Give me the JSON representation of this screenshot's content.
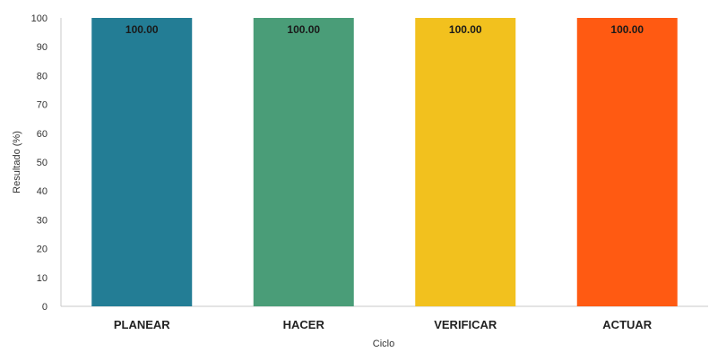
{
  "chart_data": {
    "type": "bar",
    "categories": [
      "PLANEAR",
      "HACER",
      "VERIFICAR",
      "ACTUAR"
    ],
    "values": [
      100,
      100,
      100,
      100
    ],
    "data_labels": [
      "100.00",
      "100.00",
      "100.00",
      "100.00"
    ],
    "colors": [
      "#237d95",
      "#4a9d78",
      "#f2c11e",
      "#ff5a12"
    ],
    "xlabel": "Ciclo",
    "ylabel": "Resultado (%)",
    "ylim": [
      0,
      100
    ],
    "yticks": [
      0,
      10,
      20,
      30,
      40,
      50,
      60,
      70,
      80,
      90,
      100
    ],
    "grid": false
  }
}
